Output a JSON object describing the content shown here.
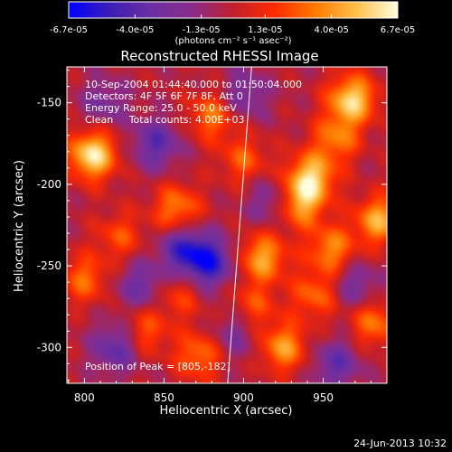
{
  "colors": {
    "background": "#000000",
    "foreground": "#ffffff",
    "limb_line": "#ffffff",
    "colormap": [
      "#0000ff",
      "#3b1eb6",
      "#6b2fa3",
      "#8a2c8a",
      "#c0202c",
      "#ff2a00",
      "#ff7a00",
      "#ffc04a",
      "#ffffe0"
    ]
  },
  "chart_data": {
    "type": "heatmap",
    "title": "Reconstructed RHESSI Image",
    "xlabel": "Heliocentric X (arcsec)",
    "ylabel": "Heliocentric Y (arcsec)",
    "xlim": [
      789,
      990
    ],
    "ylim": [
      -322,
      -128
    ],
    "xticks": [
      "800",
      "850",
      "900",
      "950"
    ],
    "yticks": [
      "-150",
      "-200",
      "-250",
      "-300"
    ],
    "xtick_values": [
      800,
      850,
      900,
      950
    ],
    "ytick_values": [
      -150,
      -200,
      -250,
      -300
    ],
    "colorbar": {
      "range": [
        -6.7e-05,
        6.7e-05
      ],
      "tick_labels": [
        "-6.7e-05",
        "-4.0e-05",
        "-1.3e-05",
        "1.3e-05",
        "4.0e-05",
        "6.7e-05"
      ],
      "tick_values": [
        -6.7e-05,
        -4e-05,
        -1.3e-05,
        1.3e-05,
        4e-05,
        6.7e-05
      ],
      "unit_label": "(photons cm⁻² s⁻¹ asec⁻²)"
    },
    "annotations": [
      "10-Sep-2004 01:44:40.000 to 01:50:04.000",
      "Detectors: 4F 5F 6F 7F 8F, Att 0",
      "Energy Range: 25.0 - 50.0 keV",
      "Clean     Total counts: 4.00E+03"
    ],
    "peak_label": "Position of Peak = [805,-182]",
    "peak": [
      805,
      -182
    ],
    "sources": [
      {
        "x": 805,
        "y": -182,
        "v": 1.0
      },
      {
        "x": 968,
        "y": -148,
        "v": 0.92
      },
      {
        "x": 942,
        "y": -196,
        "v": 0.85
      },
      {
        "x": 935,
        "y": -212,
        "v": 0.7
      },
      {
        "x": 880,
        "y": -158,
        "v": 0.55
      },
      {
        "x": 858,
        "y": -215,
        "v": 0.6
      },
      {
        "x": 912,
        "y": -245,
        "v": 0.72
      },
      {
        "x": 955,
        "y": -240,
        "v": 0.62
      },
      {
        "x": 985,
        "y": -222,
        "v": 0.75
      },
      {
        "x": 982,
        "y": -285,
        "v": 0.55
      },
      {
        "x": 925,
        "y": -300,
        "v": 0.68
      },
      {
        "x": 872,
        "y": -305,
        "v": 0.55
      },
      {
        "x": 838,
        "y": -290,
        "v": 0.45
      },
      {
        "x": 800,
        "y": -258,
        "v": 0.5
      },
      {
        "x": 822,
        "y": -232,
        "v": 0.4
      },
      {
        "x": 900,
        "y": -185,
        "v": 0.45
      },
      {
        "x": 958,
        "y": -172,
        "v": 0.55
      },
      {
        "x": 945,
        "y": -268,
        "v": 0.5
      },
      {
        "x": 860,
        "y": -268,
        "v": 0.35
      },
      {
        "x": 906,
        "y": -275,
        "v": 0.4
      },
      {
        "x": 845,
        "y": -175,
        "v": -0.55
      },
      {
        "x": 878,
        "y": -248,
        "v": -0.8
      },
      {
        "x": 862,
        "y": -240,
        "v": -0.65
      },
      {
        "x": 835,
        "y": -262,
        "v": -0.45
      },
      {
        "x": 820,
        "y": -300,
        "v": -0.55
      },
      {
        "x": 958,
        "y": -310,
        "v": -0.5
      },
      {
        "x": 918,
        "y": -210,
        "v": -0.4
      },
      {
        "x": 970,
        "y": -262,
        "v": -0.4
      },
      {
        "x": 900,
        "y": -145,
        "v": -0.4
      },
      {
        "x": 812,
        "y": -150,
        "v": -0.35
      },
      {
        "x": 895,
        "y": -292,
        "v": -0.35
      }
    ],
    "limb": [
      [
        905,
        -128
      ],
      [
        890,
        -322
      ]
    ]
  },
  "footer": {
    "timestamp": "24-Jun-2013 10:32"
  }
}
